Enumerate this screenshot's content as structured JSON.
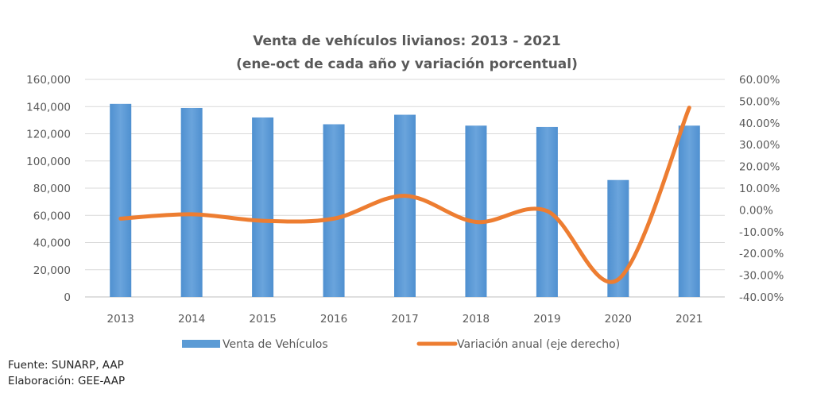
{
  "chart_data": {
    "type": "bar",
    "title": [
      "Venta de vehículos livianos: 2013 - 2021",
      "(ene-oct de cada año y variación porcentual)"
    ],
    "categories": [
      "2013",
      "2014",
      "2015",
      "2016",
      "2017",
      "2018",
      "2019",
      "2020",
      "2021"
    ],
    "series": [
      {
        "name": "Venta de Vehículos",
        "type": "bar",
        "axis": "left",
        "color": "#5B9BD5",
        "values": [
          142000,
          139000,
          132000,
          127000,
          134000,
          126000,
          125000,
          86000,
          126000
        ]
      },
      {
        "name": "Variación anual (eje derecho)",
        "type": "line",
        "smooth": true,
        "axis": "right",
        "color": "#ED7D31",
        "values": [
          -4.0,
          -2.0,
          -5.0,
          -4.0,
          6.5,
          -5.5,
          -0.5,
          -32.0,
          47.0
        ]
      }
    ],
    "y_left": {
      "ylim": [
        0,
        160000
      ],
      "ticks": [
        0,
        20000,
        40000,
        60000,
        80000,
        100000,
        120000,
        140000,
        160000
      ],
      "tick_labels": [
        "0",
        "20,000",
        "40,000",
        "60,000",
        "80,000",
        "100,000",
        "120,000",
        "140,000",
        "160,000"
      ]
    },
    "y_right": {
      "ylim": [
        -40,
        60
      ],
      "ticks": [
        -40,
        -30,
        -20,
        -10,
        0,
        10,
        20,
        30,
        40,
        50,
        60
      ],
      "tick_labels": [
        "-40.00%",
        "-30.00%",
        "-20.00%",
        "-10.00%",
        "0.00%",
        "10.00%",
        "20.00%",
        "30.00%",
        "40.00%",
        "50.00%",
        "60.00%"
      ]
    },
    "grid": true,
    "legend_position": "bottom",
    "xlabel": "",
    "ylabel": ""
  },
  "footer": {
    "source": "Fuente: SUNARP, AAP",
    "credit": "Elaboración: GEE-AAP"
  }
}
